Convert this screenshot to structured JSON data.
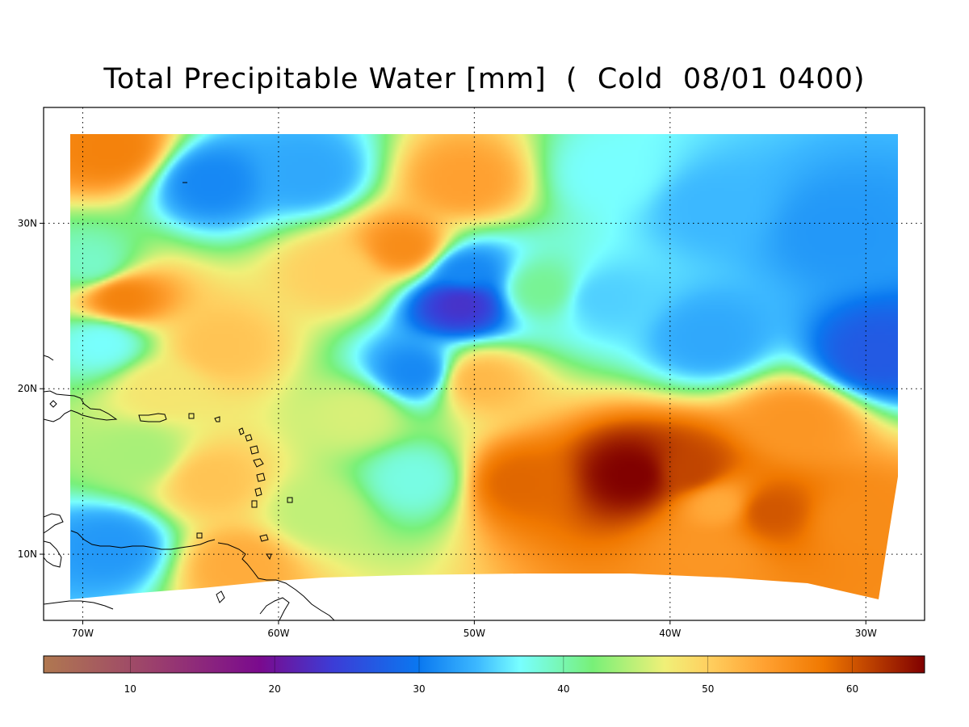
{
  "title": "Total Precipitable Water [mm]  (  Cold  08/01 0400)",
  "map": {
    "lat_range": [
      6.0,
      37.0
    ],
    "lon_range": [
      -72.0,
      -27.0
    ],
    "lat_ticks": [
      {
        "value": 30,
        "label": "30N"
      },
      {
        "value": 20,
        "label": "20N"
      },
      {
        "value": 10,
        "label": "10N"
      }
    ],
    "lon_ticks": [
      {
        "value": -70,
        "label": "70W"
      },
      {
        "value": -60,
        "label": "60W"
      },
      {
        "value": -50,
        "label": "50W"
      },
      {
        "value": -40,
        "label": "40W"
      },
      {
        "value": -30,
        "label": "30W"
      }
    ],
    "gridlines": "dotted",
    "data_extent": {
      "lat": [
        8.5,
        35.5
      ],
      "lon": [
        -70.6,
        -28.3
      ]
    }
  },
  "colorbar": {
    "min": 4,
    "max": 65,
    "ticks": [
      {
        "value": 10,
        "label": "10"
      },
      {
        "value": 20,
        "label": "20"
      },
      {
        "value": 30,
        "label": "30"
      },
      {
        "value": 40,
        "label": "40"
      },
      {
        "value": 50,
        "label": "50"
      },
      {
        "value": 60,
        "label": "60"
      }
    ],
    "stops": [
      {
        "value": 4,
        "color": "#b07850"
      },
      {
        "value": 12,
        "color": "#9a3d6e"
      },
      {
        "value": 19,
        "color": "#7a0a8e"
      },
      {
        "value": 24,
        "color": "#3c3cd6"
      },
      {
        "value": 30,
        "color": "#0a78f0"
      },
      {
        "value": 34,
        "color": "#3cb8ff"
      },
      {
        "value": 37,
        "color": "#78ffff"
      },
      {
        "value": 42,
        "color": "#78f078"
      },
      {
        "value": 47,
        "color": "#f0f078"
      },
      {
        "value": 50,
        "color": "#ffd060"
      },
      {
        "value": 54,
        "color": "#ffa030"
      },
      {
        "value": 58,
        "color": "#f07800"
      },
      {
        "value": 65,
        "color": "#800000"
      }
    ]
  },
  "field_features": [
    {
      "lat": 14.8,
      "lon": -41.8,
      "value": 65
    },
    {
      "lat": 15.0,
      "lon": -39.0,
      "value": 61
    },
    {
      "lat": 12.6,
      "lon": -35.0,
      "value": 60
    },
    {
      "lat": 14.3,
      "lon": -47.8,
      "value": 59
    },
    {
      "lat": 12.0,
      "lon": -30.5,
      "value": 56
    },
    {
      "lat": 10.0,
      "lon": -38.0,
      "value": 55
    },
    {
      "lat": 18.0,
      "lon": -33.5,
      "value": 55
    },
    {
      "lat": 13.0,
      "lon": -37.5,
      "value": 53
    },
    {
      "lat": 34.5,
      "lon": -68.5,
      "value": 57
    },
    {
      "lat": 25.5,
      "lon": -68.0,
      "value": 57
    },
    {
      "lat": 28.5,
      "lon": -53.5,
      "value": 56
    },
    {
      "lat": 32.5,
      "lon": -50.5,
      "value": 54
    },
    {
      "lat": 27.0,
      "lon": -57.0,
      "value": 50
    },
    {
      "lat": 22.5,
      "lon": -63.0,
      "value": 51
    },
    {
      "lat": 20.5,
      "lon": -49.8,
      "value": 52
    },
    {
      "lat": 14.5,
      "lon": -63.5,
      "value": 51
    },
    {
      "lat": 18.5,
      "lon": -56.0,
      "value": 46
    },
    {
      "lat": 12.5,
      "lon": -58.0,
      "value": 45
    },
    {
      "lat": 20.0,
      "lon": -66.0,
      "value": 48
    },
    {
      "lat": 9.3,
      "lon": -62.0,
      "value": 53
    },
    {
      "lat": 16.0,
      "lon": -67.0,
      "value": 44
    },
    {
      "lat": 27.5,
      "lon": -69.5,
      "value": 39
    },
    {
      "lat": 22.8,
      "lon": -69.0,
      "value": 37
    },
    {
      "lat": 25.2,
      "lon": -50.7,
      "value": 23
    },
    {
      "lat": 27.0,
      "lon": -50.5,
      "value": 31
    },
    {
      "lat": 21.0,
      "lon": -53.0,
      "value": 31
    },
    {
      "lat": 14.5,
      "lon": -53.0,
      "value": 38
    },
    {
      "lat": 26.0,
      "lon": -46.5,
      "value": 41
    },
    {
      "lat": 32.5,
      "lon": -63.5,
      "value": 31
    },
    {
      "lat": 33.0,
      "lon": -58.5,
      "value": 33
    },
    {
      "lat": 31.0,
      "lon": -38.0,
      "value": 34
    },
    {
      "lat": 29.5,
      "lon": -31.5,
      "value": 32
    },
    {
      "lat": 23.0,
      "lon": -38.0,
      "value": 33
    },
    {
      "lat": 22.0,
      "lon": -29.5,
      "value": 27
    },
    {
      "lat": 25.5,
      "lon": -43.5,
      "value": 35
    },
    {
      "lat": 33.0,
      "lon": -43.0,
      "value": 37
    },
    {
      "lat": 10.5,
      "lon": -68.5,
      "value": 32
    }
  ]
}
